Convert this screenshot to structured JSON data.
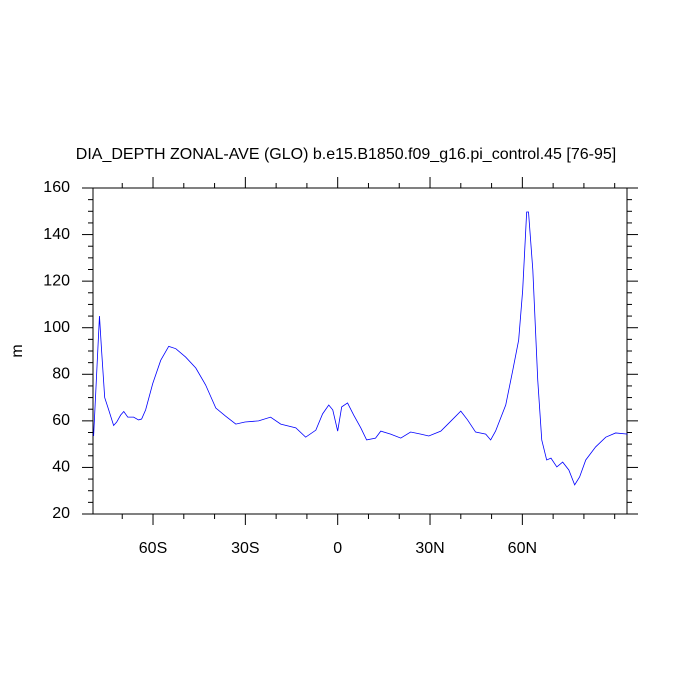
{
  "chart_data": {
    "type": "line",
    "title": "DIA_DEPTH ZONAL-AVE (GLO) b.e15.B1850.f09_g16.pi_control.45 [76-95]",
    "y_label": "m",
    "x": [
      -79.3,
      -77.4,
      -76.7,
      -75.7,
      -74.4,
      -72.8,
      -71.8,
      -70.5,
      -69.5,
      -68.2,
      -66.3,
      -64.7,
      -63.7,
      -62.4,
      -60.1,
      -57.5,
      -54.9,
      -52.6,
      -49.4,
      -46.1,
      -42.9,
      -39.6,
      -36.4,
      -33.1,
      -30.1,
      -25.7,
      -21.8,
      -18.5,
      -13.6,
      -10.4,
      -7.1,
      -4.9,
      -2.9,
      -1.6,
      0,
      1.3,
      3.2,
      5.2,
      7.5,
      9.4,
      12.3,
      14,
      17.2,
      20.5,
      23.7,
      27,
      29.6,
      33.5,
      36.1,
      40,
      42.2,
      44.8,
      48.1,
      49.7,
      51.3,
      54.6,
      56.9,
      58.8,
      60.1,
      61.4,
      62,
      63.4,
      65,
      66.3,
      67.9,
      69.3,
      71.2,
      73.1,
      75.1,
      77,
      78.6,
      80.6,
      83.8,
      87.1,
      90.3,
      94.2
    ],
    "series": [
      {
        "name": "DIA_DEPTH",
        "color": "#0000ff",
        "values": [
          53.5,
          105,
          90,
          70,
          64.7,
          58,
          59.5,
          62.5,
          64,
          61.6,
          61.6,
          60.4,
          60.8,
          64.7,
          76,
          86,
          92,
          91,
          87.4,
          82.7,
          75.4,
          65.5,
          62,
          58.6,
          59.5,
          60,
          61.6,
          58.6,
          57,
          53,
          56,
          63,
          66.8,
          64.7,
          55.6,
          66,
          67.7,
          62.5,
          57,
          51.8,
          52.6,
          55.6,
          54.3,
          52.6,
          55.2,
          54.3,
          53.5,
          55.6,
          59,
          64.2,
          60.4,
          55.2,
          54.3,
          51.8,
          55.6,
          66.8,
          81.8,
          94.7,
          116,
          149.7,
          149.7,
          124.8,
          77.5,
          51.8,
          43.2,
          44,
          40.2,
          42.3,
          38.9,
          32.5,
          35.9,
          43.2,
          48.8,
          53,
          54.8,
          54.3
        ]
      }
    ],
    "xlim": [
      -79.5,
      94
    ],
    "xticks": [
      {
        "value": -60,
        "label": "60S"
      },
      {
        "value": -30,
        "label": "30S"
      },
      0,
      {
        "value": 30,
        "label": "30N"
      },
      {
        "value": 60,
        "label": "60N"
      }
    ],
    "xminorticks": [
      -70,
      -50,
      -40,
      -20,
      -10,
      10,
      20,
      40,
      50,
      70,
      80,
      90
    ],
    "ylim": [
      20,
      160
    ],
    "yticks": [
      20,
      40,
      60,
      80,
      100,
      120,
      140,
      160
    ],
    "yminorticks": [
      25,
      30,
      35,
      45,
      50,
      55,
      65,
      70,
      75,
      85,
      90,
      95,
      105,
      110,
      115,
      125,
      130,
      135,
      145,
      150,
      155
    ]
  }
}
